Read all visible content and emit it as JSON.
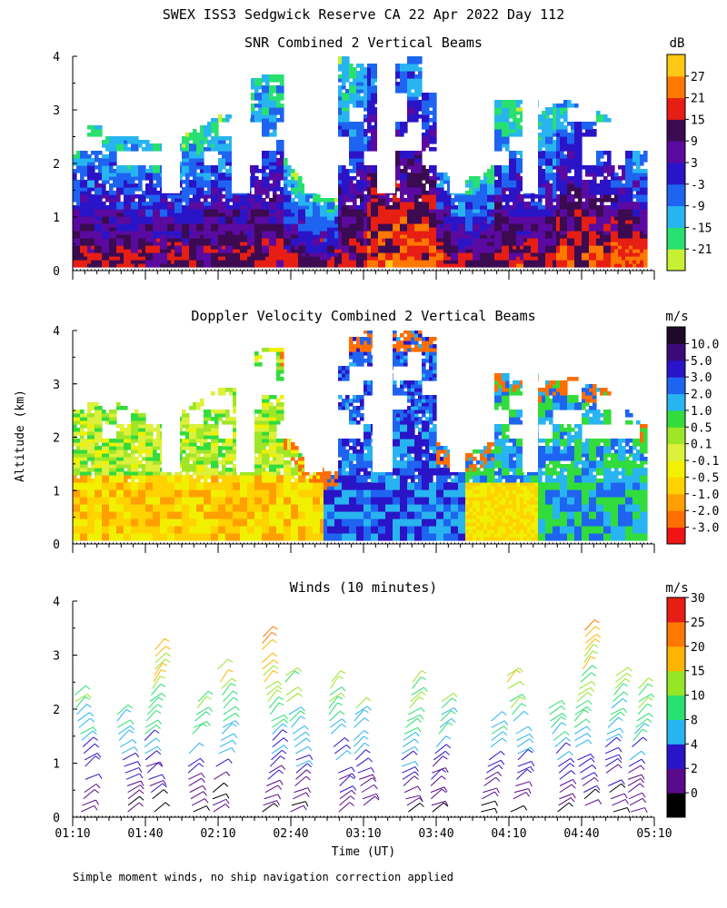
{
  "title": "SWEX ISS3 Sedgwick Reserve CA  22 Apr 2022 Day 112",
  "ylabel": "Altitude (km)",
  "xlabel": "Time (UT)",
  "footnote": "Simple moment winds, no ship navigation correction applied",
  "x_ticks": [
    "01:10",
    "01:40",
    "02:10",
    "02:40",
    "03:10",
    "03:40",
    "04:10",
    "04:40",
    "05:10"
  ],
  "y_ticks": [
    "0",
    "1",
    "2",
    "3",
    "4"
  ],
  "chart_data": [
    {
      "type": "heatmap",
      "title": "SNR Combined 2 Vertical Beams",
      "unit": "dB",
      "xlim": [
        "01:10",
        "05:10"
      ],
      "ylim": [
        0,
        4
      ],
      "levels": [
        -21,
        -15,
        -9,
        -3,
        3,
        9,
        15,
        21,
        27
      ],
      "level_labels": [
        "-21",
        "-15",
        "-9",
        "-3",
        "3",
        "9",
        "15",
        "21",
        "27"
      ],
      "colors": [
        "#c8f032",
        "#28e070",
        "#28b4f0",
        "#1e64f0",
        "#2a14c8",
        "#5a0aa0",
        "#3c0a50",
        "#e61e14",
        "#ff7800",
        "#ffc814"
      ]
    },
    {
      "type": "heatmap",
      "title": "Doppler Velocity Combined 2 Vertical Beams",
      "unit": "m/s",
      "xlim": [
        "01:10",
        "05:10"
      ],
      "ylim": [
        0,
        4
      ],
      "levels": [
        -3.0,
        -2.0,
        -1.0,
        -0.5,
        -0.1,
        0.1,
        0.5,
        1.0,
        2.0,
        3.0,
        5.0,
        10.0
      ],
      "level_labels": [
        "-3.0",
        "-2.0",
        "-1.0",
        "-0.5",
        "-0.1",
        "0.1",
        "0.5",
        "1.0",
        "2.0",
        "3.0",
        "5.0",
        "10.0"
      ],
      "colors": [
        "#f01414",
        "#ff6e00",
        "#ffa000",
        "#ffd200",
        "#f0f000",
        "#dcf03c",
        "#a0e628",
        "#32dc3c",
        "#28b4f0",
        "#1e64f0",
        "#2a14c8",
        "#3c0a78",
        "#1e0a28"
      ]
    },
    {
      "type": "wind_barbs",
      "title": "Winds (10 minutes)",
      "unit": "m/s",
      "xlim": [
        "01:10",
        "05:10"
      ],
      "ylim": [
        0,
        4
      ],
      "levels": [
        0,
        2,
        4,
        8,
        10,
        15,
        20,
        25,
        30
      ],
      "level_labels": [
        "0",
        "2",
        "4",
        "8",
        "10",
        "15",
        "20",
        "25",
        "30"
      ],
      "colors": [
        "#000000",
        "#5a0a8c",
        "#2a14c8",
        "#28b4f0",
        "#28e070",
        "#96e628",
        "#ffb400",
        "#ff7800",
        "#e61e14"
      ]
    }
  ]
}
